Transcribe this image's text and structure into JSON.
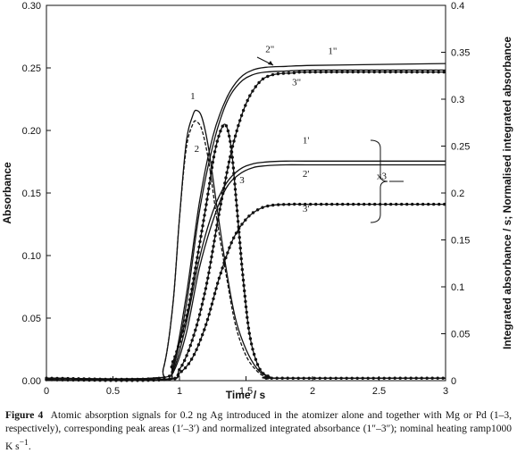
{
  "chart_data": {
    "type": "line",
    "xlabel": "Time / s",
    "ylabel": "Absorbance",
    "y2label": "Integrated absorbance / s; Normalised integrated absorbance",
    "xlim": [
      0,
      3
    ],
    "ylim": [
      0,
      0.3
    ],
    "y2lim": [
      0,
      0.4
    ],
    "xticks": [
      "0",
      "0.5",
      "1",
      "1.5",
      "2",
      "2.5",
      "3"
    ],
    "yticks": [
      "0.00",
      "0.05",
      "0.10",
      "0.15",
      "0.20",
      "0.25",
      "0.30"
    ],
    "y2ticks": [
      "0",
      "0.05",
      "0.1",
      "0.15",
      "0.2",
      "0.25",
      "0.3",
      "0.35",
      "0.4"
    ],
    "grid": false,
    "series": [
      {
        "name": "1",
        "axis": "left",
        "style": "solid",
        "x": [
          0,
          0.8,
          0.88,
          0.95,
          1.0,
          1.05,
          1.1,
          1.13,
          1.17,
          1.22,
          1.28,
          1.35,
          1.42,
          1.5,
          1.58,
          1.65,
          1.75,
          3.0
        ],
        "y": [
          0.002,
          0.002,
          0.01,
          0.06,
          0.13,
          0.19,
          0.212,
          0.216,
          0.21,
          0.185,
          0.14,
          0.09,
          0.05,
          0.025,
          0.01,
          0.004,
          0.002,
          0.002
        ]
      },
      {
        "name": "2",
        "axis": "left",
        "style": "dashed",
        "x": [
          0,
          0.8,
          0.88,
          0.95,
          1.0,
          1.05,
          1.1,
          1.13,
          1.17,
          1.22,
          1.28,
          1.35,
          1.42,
          1.5,
          1.58,
          1.65,
          1.75,
          3.0
        ],
        "y": [
          0.002,
          0.002,
          0.01,
          0.06,
          0.13,
          0.185,
          0.205,
          0.207,
          0.2,
          0.175,
          0.13,
          0.085,
          0.045,
          0.02,
          0.008,
          0.003,
          0.002,
          0.002
        ]
      },
      {
        "name": "3",
        "axis": "left",
        "style": "dotted",
        "x": [
          0,
          0.85,
          0.95,
          1.05,
          1.12,
          1.2,
          1.26,
          1.31,
          1.35,
          1.39,
          1.43,
          1.48,
          1.53,
          1.6,
          1.68,
          1.75,
          3.0
        ],
        "y": [
          0.002,
          0.002,
          0.015,
          0.05,
          0.09,
          0.14,
          0.18,
          0.2,
          0.204,
          0.185,
          0.14,
          0.08,
          0.035,
          0.01,
          0.003,
          0.002,
          0.002
        ]
      },
      {
        "name": "1'",
        "axis": "right",
        "style": "solid",
        "x": [
          0,
          0.85,
          0.95,
          1.05,
          1.15,
          1.25,
          1.35,
          1.45,
          1.55,
          1.65,
          1.8,
          2.0,
          3.0
        ],
        "y": [
          0.001,
          0.001,
          0.01,
          0.06,
          0.13,
          0.18,
          0.21,
          0.225,
          0.231,
          0.233,
          0.234,
          0.234,
          0.234
        ]
      },
      {
        "name": "2'",
        "axis": "right",
        "style": "solid",
        "x": [
          0,
          0.85,
          0.95,
          1.05,
          1.15,
          1.25,
          1.35,
          1.45,
          1.55,
          1.65,
          1.8,
          2.0,
          3.0
        ],
        "y": [
          0.001,
          0.001,
          0.008,
          0.05,
          0.12,
          0.17,
          0.205,
          0.22,
          0.227,
          0.229,
          0.23,
          0.23,
          0.23
        ]
      },
      {
        "name": "3'",
        "axis": "right",
        "style": "dotted",
        "x": [
          0,
          0.88,
          1.0,
          1.1,
          1.2,
          1.3,
          1.4,
          1.5,
          1.6,
          1.7,
          1.85,
          2.0,
          3.0
        ],
        "y": [
          0.001,
          0.001,
          0.008,
          0.025,
          0.06,
          0.11,
          0.15,
          0.172,
          0.183,
          0.187,
          0.188,
          0.188,
          0.188
        ]
      },
      {
        "name": "1\"",
        "axis": "right",
        "style": "solid",
        "x": [
          0,
          0.85,
          0.95,
          1.05,
          1.15,
          1.25,
          1.35,
          1.45,
          1.55,
          1.65,
          1.8,
          2.0,
          2.5,
          3.0
        ],
        "y": [
          0.001,
          0.001,
          0.015,
          0.09,
          0.19,
          0.26,
          0.3,
          0.322,
          0.331,
          0.334,
          0.335,
          0.336,
          0.337,
          0.338
        ]
      },
      {
        "name": "2\"",
        "axis": "right",
        "style": "solid",
        "x": [
          0,
          0.85,
          0.95,
          1.05,
          1.15,
          1.25,
          1.35,
          1.45,
          1.55,
          1.65,
          1.8,
          2.0,
          2.5,
          3.0
        ],
        "y": [
          0.001,
          0.001,
          0.012,
          0.08,
          0.18,
          0.25,
          0.295,
          0.317,
          0.326,
          0.329,
          0.33,
          0.331,
          0.331,
          0.331
        ]
      },
      {
        "name": "3\"",
        "axis": "right",
        "style": "dotted",
        "x": [
          0,
          0.88,
          1.0,
          1.1,
          1.2,
          1.3,
          1.4,
          1.5,
          1.6,
          1.7,
          1.85,
          2.0,
          3.0
        ],
        "y": [
          0.001,
          0.001,
          0.012,
          0.045,
          0.1,
          0.18,
          0.25,
          0.295,
          0.318,
          0.326,
          0.328,
          0.329,
          0.329
        ]
      }
    ],
    "annotations": [
      {
        "text": "1",
        "x": 1.1,
        "y": 0.225,
        "axis": "left"
      },
      {
        "text": "2",
        "x": 1.13,
        "y": 0.183,
        "axis": "left"
      },
      {
        "text": "3",
        "x": 1.47,
        "y": 0.158,
        "axis": "left"
      },
      {
        "text": "1'",
        "x": 1.95,
        "y": 0.253,
        "axis": "right"
      },
      {
        "text": "2'",
        "x": 1.95,
        "y": 0.217,
        "axis": "right"
      },
      {
        "text": "3'",
        "x": 1.95,
        "y": 0.18,
        "axis": "right"
      },
      {
        "text": "x3",
        "x": 2.52,
        "y": 0.215,
        "axis": "right"
      },
      {
        "text": "1\"",
        "x": 2.15,
        "y": 0.348,
        "axis": "right"
      },
      {
        "text": "2\"",
        "x": 1.68,
        "y": 0.35,
        "axis": "right"
      },
      {
        "text": "3\"",
        "x": 1.88,
        "y": 0.315,
        "axis": "right"
      }
    ]
  },
  "caption": {
    "label": "Figure 4",
    "text": "Atomic absorption signals for 0.2 ng Ag introduced in the atomizer alone and together with Mg or Pd (1–3, respectively), corresponding peak areas (1′–3′) and normalized integrated absorbance (1″–3″); nominal heating ramp1000 K s",
    "superscript": "−1",
    "end": "."
  }
}
